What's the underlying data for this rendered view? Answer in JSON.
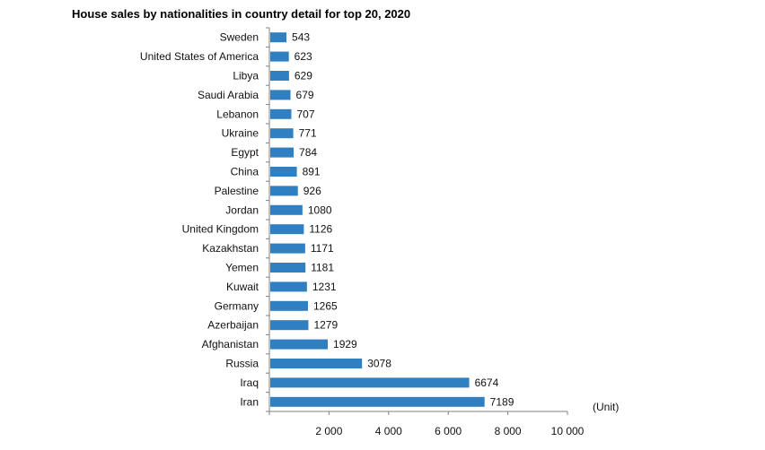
{
  "chart_data": {
    "type": "bar",
    "orientation": "horizontal",
    "title": "House sales by nationalities in country detail for top 20, 2020",
    "unit_label": "(Unit)",
    "bar_color": "#2f7fc1",
    "categories": [
      "Sweden",
      "United States of America",
      "Libya",
      "Saudi Arabia",
      "Lebanon",
      "Ukraine",
      "Egypt",
      "China",
      "Palestine",
      "Jordan",
      "United Kingdom",
      "Kazakhstan",
      "Yemen",
      "Kuwait",
      "Germany",
      "Azerbaijan",
      "Afghanistan",
      "Russia",
      "Iraq",
      "Iran"
    ],
    "values": [
      543,
      623,
      629,
      679,
      707,
      771,
      784,
      891,
      926,
      1080,
      1126,
      1171,
      1181,
      1231,
      1265,
      1279,
      1929,
      3078,
      6674,
      7189
    ],
    "xlim": [
      0,
      10000
    ],
    "xticks": [
      2000,
      4000,
      6000,
      8000,
      10000
    ],
    "xtick_labels": [
      "2 000",
      "4 000",
      "6 000",
      "8 000",
      "10 000"
    ],
    "legend": "none",
    "grid": false
  }
}
